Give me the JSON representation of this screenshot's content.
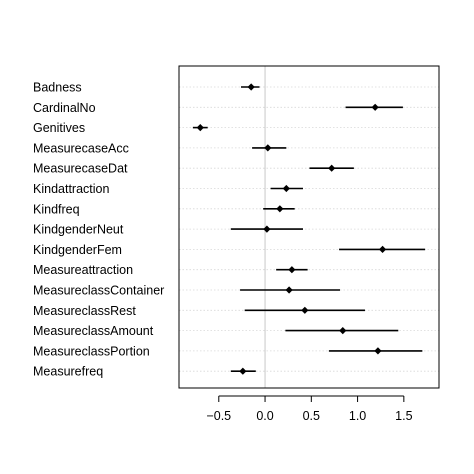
{
  "chart_data": {
    "type": "dot-whisker",
    "orientation": "horizontal",
    "title": "",
    "xlabel": "",
    "ylabel": "",
    "xlim": [
      -0.93,
      1.88
    ],
    "xticks": [
      -0.5,
      0.0,
      0.5,
      1.0,
      1.5
    ],
    "xtick_labels": [
      "−0.5",
      "0.0",
      "0.5",
      "1.0",
      "1.5"
    ],
    "reference_line_x": 0,
    "grid": "horizontal-dotted",
    "categories": [
      "Badness",
      "CardinalNo",
      "Genitives",
      "MeasurecaseAcc",
      "MeasurecaseDat",
      "Kindattraction",
      "Kindfreq",
      "KindgenderNeut",
      "KindgenderFem",
      "Measureattraction",
      "MeasureclassContainer",
      "MeasureclassRest",
      "MeasureclassAmount",
      "MeasureclassPortion",
      "Measurefreq"
    ],
    "estimates": [
      -0.15,
      1.19,
      -0.7,
      0.03,
      0.72,
      0.23,
      0.16,
      0.02,
      1.27,
      0.29,
      0.26,
      0.43,
      0.84,
      1.22,
      -0.24
    ],
    "lower": [
      -0.26,
      0.87,
      -0.78,
      -0.14,
      0.48,
      0.06,
      -0.02,
      -0.37,
      0.8,
      0.12,
      -0.27,
      -0.22,
      0.22,
      0.69,
      -0.37
    ],
    "upper": [
      -0.06,
      1.49,
      -0.62,
      0.23,
      0.96,
      0.41,
      0.32,
      0.41,
      1.73,
      0.46,
      0.81,
      1.08,
      1.44,
      1.7,
      -0.1
    ]
  }
}
